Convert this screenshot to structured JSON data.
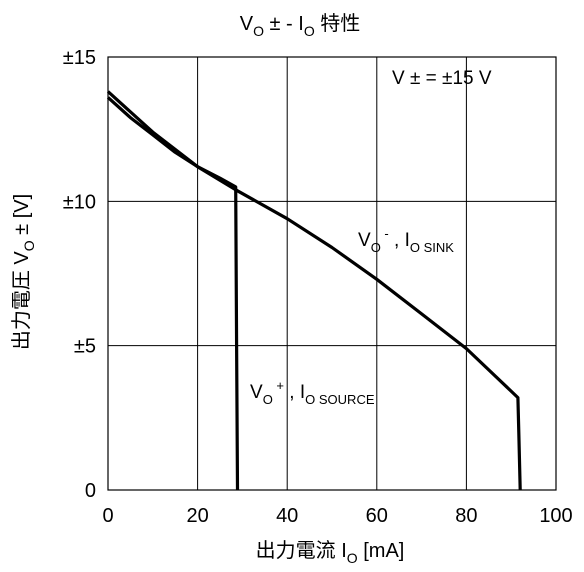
{
  "chart_data": {
    "type": "line",
    "title": {
      "main": "V",
      "sub": "O",
      "rest": " ± - I",
      "sub2": "O",
      "tail": " 特性"
    },
    "xlabel": {
      "main": "出力電流 I",
      "sub": "O",
      "rest": " [mA]"
    },
    "ylabel": {
      "main": "出力電圧 V",
      "sub": "O",
      "rest": " ± [V]"
    },
    "xlim": [
      0,
      100
    ],
    "ylim": [
      0,
      15
    ],
    "x_ticks": [
      {
        "value": 0,
        "label": "0"
      },
      {
        "value": 20,
        "label": "20"
      },
      {
        "value": 40,
        "label": "40"
      },
      {
        "value": 60,
        "label": "60"
      },
      {
        "value": 80,
        "label": "80"
      },
      {
        "value": 100,
        "label": "100"
      }
    ],
    "y_ticks": [
      {
        "value": 0,
        "label": "0"
      },
      {
        "value": 5,
        "label": "±5"
      },
      {
        "value": 10,
        "label": "±10"
      },
      {
        "value": 15,
        "label": "±15"
      }
    ],
    "grid": true,
    "annotation": "V ± = ±15 V",
    "series": [
      {
        "name": "VO+, IO SOURCE",
        "label": {
          "main": "V",
          "sub": "O",
          "sup": " +",
          "mid": " , I",
          "sub2": "O SOURCE"
        },
        "x": [
          0,
          5,
          10,
          15,
          20,
          25,
          28.5,
          28.7,
          28.9
        ],
        "y": [
          13.6,
          12.9,
          12.3,
          11.7,
          11.2,
          10.8,
          10.5,
          5.0,
          0
        ]
      },
      {
        "name": "VO-, IO SINK",
        "label": {
          "main": "V",
          "sub": "O",
          "sup": " -",
          "mid": " , I",
          "sub2": "O SINK"
        },
        "x": [
          0,
          10,
          20,
          28.5,
          40,
          50,
          60,
          70,
          80,
          91.5,
          91.7,
          92.0
        ],
        "y": [
          13.8,
          12.4,
          11.2,
          10.4,
          9.4,
          8.4,
          7.3,
          6.1,
          4.9,
          3.2,
          2.0,
          0
        ]
      }
    ],
    "colors": {
      "line": "#000000",
      "grid": "#000000",
      "background": "#ffffff"
    }
  }
}
